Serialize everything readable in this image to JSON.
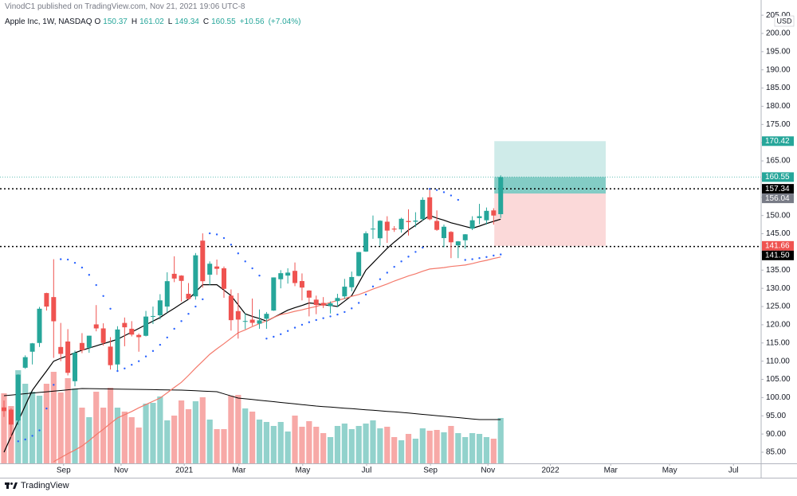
{
  "chart_data": {
    "type": "candlestick",
    "header": "VinodC1 published on TradingView.com, Nov 21, 2021 19:06 UTC-8",
    "title": "Apple Inc, 1W, NASDAQ",
    "legend": {
      "open_label": "O",
      "high_label": "H",
      "low_label": "L",
      "close_label": "C",
      "change": {
        "value": 10.56,
        "label": "+10.56"
      },
      "change_percent": {
        "value": 7.04,
        "label": "(+7.04%)"
      }
    },
    "currency": "USD",
    "footer": "TradingView",
    "colors": {
      "up": "#26a69a",
      "down": "#ef5350",
      "volume_up": "rgba(38,166,154,0.5)",
      "volume_down": "rgba(239,83,80,0.5)"
    },
    "open": [
      97.3,
      96.7,
      93.7,
      108.2,
      112.6,
      115,
      128.7,
      127.6,
      113.9,
      115.4,
      104.5,
      115,
      113.7,
      120.1,
      119,
      114,
      109.1,
      120.5,
      118.9,
      117.2,
      116.97,
      122.3,
      122.6,
      125,
      133.99,
      133.5,
      128.5,
      127.8,
      143.1,
      133.75,
      136,
      135.5,
      128,
      123.75,
      120.9,
      121.4,
      120.3,
      121.65,
      123.9,
      132.5,
      133.5,
      134.8,
      132,
      129.4,
      126.9,
      126,
      125.1,
      126.5,
      127.8,
      130.3,
      133.4,
      140.1,
      146.2,
      143.75,
      148.3,
      146.4,
      146.2,
      148.5,
      148.3,
      149,
      155,
      148.5,
      143.8,
      145.5,
      141.8,
      143.2,
      146.4,
      149.3,
      148.7,
      151.4,
      150.37
    ],
    "high": [
      99.2,
      97.1,
      106.4,
      111.6,
      115,
      124.9,
      128.8,
      138,
      120.5,
      118.8,
      112.9,
      117.7,
      117,
      125.4,
      120.4,
      116.6,
      119.6,
      121.99,
      120.99,
      117.6,
      123.8,
      125,
      128.4,
      134.4,
      138.8,
      133.6,
      131.45,
      139.7,
      145.1,
      137.4,
      137.9,
      136,
      129.7,
      128.7,
      123.2,
      127.2,
      124.2,
      123.5,
      133,
      135,
      135.5,
      137.1,
      134.1,
      129.5,
      128,
      127.6,
      126.4,
      128.5,
      132.6,
      134.6,
      140,
      145.65,
      150,
      148.7,
      149.8,
      147.1,
      149.4,
      151.7,
      150.9,
      155,
      157.3,
      151.4,
      147.5,
      145.7,
      143,
      144.9,
      149.8,
      153.2,
      152.2,
      152,
      161.02
    ],
    "low": [
      94.7,
      89.1,
      92.5,
      107.9,
      109.1,
      113.9,
      123.9,
      110.9,
      110,
      106.1,
      103.1,
      112.2,
      112.3,
      118.2,
      114.3,
      107.7,
      107.3,
      114.1,
      116.8,
      112.6,
      116.8,
      120.2,
      121.5,
      123.4,
      131.7,
      126.4,
      126.9,
      126.9,
      130.2,
      130.9,
      133.7,
      127.4,
      118.4,
      116.2,
      118.8,
      119.7,
      118.9,
      118.9,
      123.8,
      130,
      131.3,
      130.6,
      126.7,
      122.3,
      122.9,
      124.6,
      123.1,
      124.8,
      127.1,
      129.2,
      133.3,
      140,
      143.6,
      141.7,
      142.5,
      145.5,
      145.3,
      144.5,
      146.8,
      148.6,
      148.7,
      145.8,
      141.3,
      138.3,
      138.3,
      140.9,
      146,
      147.6,
      147.5,
      147.5,
      149.34
    ],
    "close": [
      96.3,
      92.6,
      106.3,
      111.1,
      114.9,
      124.4,
      125,
      120.96,
      112,
      106.8,
      112.3,
      113,
      117,
      119,
      115,
      108.9,
      118.7,
      119.3,
      117.3,
      116.6,
      122.25,
      122.4,
      126.7,
      131.97,
      132.69,
      132.05,
      127.1,
      139.07,
      131.96,
      136.76,
      135.37,
      129.87,
      121.26,
      121.42,
      121.03,
      120.53,
      121.21,
      123,
      133,
      134.16,
      134.32,
      131.46,
      130.21,
      127.45,
      125.43,
      125.28,
      125.89,
      127.35,
      130.46,
      133.11,
      139.96,
      145.11,
      146.39,
      148.56,
      145.86,
      146.14,
      149.1,
      148.19,
      148.6,
      154.3,
      148.97,
      146.06,
      146.92,
      142.65,
      142.9,
      144.84,
      148.69,
      149.8,
      151.28,
      149.99,
      160.55
    ],
    "volume": [
      880,
      720,
      1170,
      1000,
      900,
      850,
      1000,
      1150,
      890,
      1070,
      940,
      700,
      580,
      900,
      700,
      950,
      700,
      650,
      580,
      450,
      750,
      760,
      840,
      540,
      600,
      790,
      680,
      780,
      830,
      550,
      430,
      430,
      850,
      860,
      690,
      650,
      550,
      520,
      470,
      520,
      400,
      600,
      460,
      530,
      460,
      380,
      330,
      470,
      500,
      430,
      470,
      500,
      540,
      440,
      460,
      330,
      290,
      370,
      310,
      440,
      410,
      420,
      390,
      470,
      380,
      330,
      380,
      370,
      330,
      310,
      570
    ],
    "volume_ma": {
      "color": "#000000",
      "values": [
        850,
        858,
        866,
        875,
        883,
        891,
        899,
        907,
        915,
        924,
        932,
        940,
        939,
        937,
        936,
        934,
        933,
        931,
        930,
        929,
        927,
        926,
        924,
        923,
        921,
        920,
        916,
        912,
        908,
        904,
        900,
        873,
        847,
        820,
        811,
        802,
        793,
        784,
        775,
        765,
        756,
        747,
        738,
        729,
        720,
        713,
        707,
        700,
        693,
        687,
        680,
        673,
        667,
        660,
        653,
        647,
        640,
        632,
        624,
        615,
        607,
        599,
        591,
        583,
        575,
        566,
        558,
        550,
        550,
        550,
        550
      ]
    },
    "overlays": [
      {
        "style": "line",
        "color": "#000000",
        "values": [
          85,
          89.3,
          93.5,
          97.8,
          102,
          104.7,
          107.3,
          110,
          110.8,
          111.5,
          112.3,
          113,
          113.6,
          114.2,
          114.8,
          115.4,
          116,
          117,
          118,
          119,
          120,
          121,
          122,
          123.3,
          124.5,
          125.8,
          127,
          129,
          131,
          131,
          131,
          129.5,
          128,
          125.5,
          123,
          122.3,
          121.7,
          121,
          122,
          123,
          124,
          124.7,
          125.3,
          126,
          125.8,
          125.5,
          125.3,
          125,
          126.5,
          128,
          131.5,
          135,
          137,
          139,
          141,
          142.7,
          144.3,
          146,
          147.3,
          148.7,
          150,
          149.3,
          148.7,
          148,
          147.5,
          147,
          146.5,
          147.1,
          147.8,
          148.4,
          149
        ]
      },
      {
        "style": "line",
        "color": "#f4796b",
        "values": [
          null,
          null,
          null,
          null,
          null,
          null,
          null,
          82.4,
          83.5,
          84.6,
          85.6,
          86.7,
          88.2,
          89.8,
          91.3,
          92.9,
          94.4,
          95.3,
          96.2,
          97.2,
          98.1,
          99,
          99.9,
          101.3,
          102.8,
          104.2,
          106.1,
          108.1,
          110,
          111.9,
          113.4,
          114.8,
          116.3,
          117.8,
          118.6,
          119.5,
          120.3,
          121.1,
          122,
          122.8,
          123.2,
          123.7,
          124.1,
          124.6,
          125,
          125.6,
          126.1,
          126.7,
          127.2,
          127.8,
          128.3,
          129,
          129.8,
          130.5,
          131.2,
          132,
          132.7,
          133.4,
          134,
          134.7,
          135.3,
          135.5,
          135.7,
          136,
          136.2,
          136.4,
          136.8,
          137.3,
          137.7,
          138.2,
          138.6
        ]
      },
      {
        "style": "dots",
        "color": "#2962ff",
        "values": [
          null,
          null,
          88,
          88.5,
          89.5,
          91,
          97,
          103.5,
          138,
          137.9,
          137,
          135.7,
          133.7,
          130.9,
          127.9,
          124.4,
          107.3,
          108,
          109,
          110,
          111.3,
          112.8,
          114.5,
          116.5,
          118.9,
          121,
          123,
          125,
          127,
          145.1,
          144.8,
          143.8,
          142,
          139.6,
          137.4,
          135.5,
          133.5,
          116.2,
          116.7,
          117.4,
          118.3,
          119.2,
          120,
          120.7,
          121.3,
          121.8,
          122.3,
          122.8,
          123.5,
          124.5,
          126,
          128.3,
          130.5,
          132.5,
          134.3,
          135.9,
          137.4,
          138.7,
          140,
          141.2,
          157.3,
          157,
          156.4,
          155.5,
          154.3,
          137.8,
          138,
          138.3,
          138.6,
          139,
          139.3
        ]
      }
    ],
    "position": {
      "start_x": 69.1,
      "end_x": 84.8,
      "target": 170.42,
      "entry": 156.04,
      "stop": 141.66,
      "target_color": "rgba(38,166,154,0.22)",
      "stop_color": "rgba(239,83,80,0.22)",
      "fill_color": "rgba(38,166,154,0.45)"
    },
    "hlines": [
      157.34,
      {
        "value": 141.5,
        "label": "141.50"
      }
    ],
    "hline_color": "#000000",
    "last_price_line": true,
    "xlim": [
      -0.56,
      106.7
    ],
    "xticks": [
      {
        "value": 8.4,
        "label": "Sep"
      },
      {
        "value": 16.5,
        "label": "Nov"
      },
      {
        "value": 25.4,
        "label": "2021"
      },
      {
        "value": 33.1,
        "label": "Mar"
      },
      {
        "value": 42.1,
        "label": "May"
      },
      {
        "value": 51.1,
        "label": "Jul"
      },
      {
        "value": 60.1,
        "label": "Sep"
      },
      {
        "value": 68.2,
        "label": "Nov"
      },
      {
        "value": 77.0,
        "label": "2022"
      },
      {
        "value": 85.5,
        "label": "Mar"
      },
      {
        "value": 93.8,
        "label": "May"
      },
      {
        "value": 102.8,
        "label": "Jul"
      }
    ],
    "ylim": [
      81.94,
      209.18
    ],
    "yticks": [
      {
        "value": 85,
        "label": "85.00"
      },
      {
        "value": 90,
        "label": "90.00"
      },
      {
        "value": 95,
        "label": "95.00"
      },
      {
        "value": 100,
        "label": "100.00"
      },
      {
        "value": 105,
        "label": "105.00"
      },
      {
        "value": 110,
        "label": "110.00"
      },
      {
        "value": 115,
        "label": "115.00"
      },
      {
        "value": 120,
        "label": "120.00"
      },
      {
        "value": 125,
        "label": "125.00"
      },
      {
        "value": 130,
        "label": "130.00"
      },
      {
        "value": 135,
        "label": "135.00"
      },
      {
        "value": 140,
        "label": "140.00"
      },
      {
        "value": 145,
        "label": "145.00"
      },
      {
        "value": 150,
        "label": "150.00"
      },
      {
        "value": 155,
        "label": "155.00"
      },
      {
        "value": 160,
        "label": "160.00"
      },
      {
        "value": 165,
        "label": "165.00"
      },
      {
        "value": 170,
        "label": "170.00"
      },
      {
        "value": 175,
        "label": "175.00"
      },
      {
        "value": 180,
        "label": "180.00"
      },
      {
        "value": 185,
        "label": "185.00"
      },
      {
        "value": 190,
        "label": "190.00"
      },
      {
        "value": 195,
        "label": "195.00"
      },
      {
        "value": 200,
        "label": "200.00"
      },
      {
        "value": 205,
        "label": "205.00"
      }
    ],
    "grid": false
  }
}
